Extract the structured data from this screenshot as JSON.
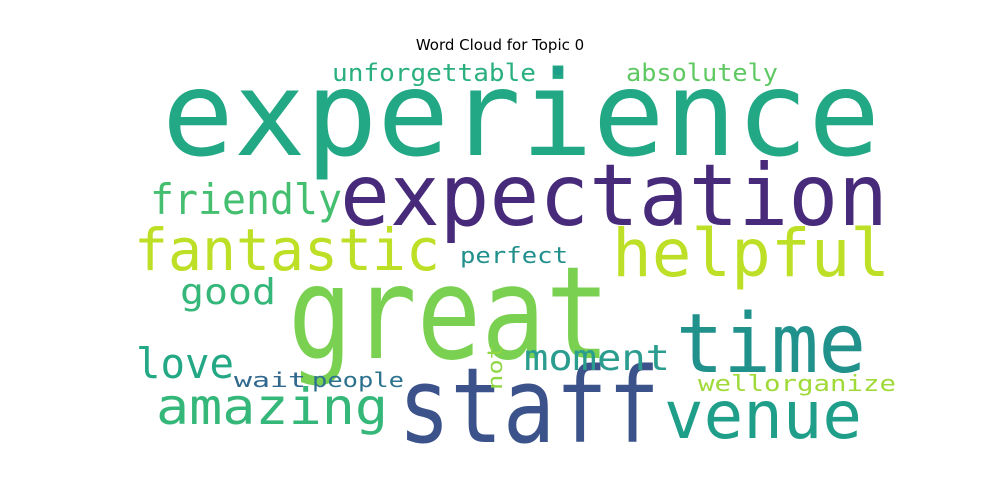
{
  "chart_data": {
    "type": "wordcloud",
    "title": "Word Cloud for Topic 0",
    "words": [
      {
        "text": "experience",
        "color": "#22a884"
      },
      {
        "text": "expectation",
        "color": "#472a7a"
      },
      {
        "text": "great",
        "color": "#7ad151"
      },
      {
        "text": "staff",
        "color": "#3b528b"
      },
      {
        "text": "time",
        "color": "#21918c"
      },
      {
        "text": "helpful",
        "color": "#bddf26"
      },
      {
        "text": "fantastic",
        "color": "#bddf26"
      },
      {
        "text": "venue",
        "color": "#1f9e89"
      },
      {
        "text": "amazing",
        "color": "#35b779"
      },
      {
        "text": "friendly",
        "color": "#44bf70"
      },
      {
        "text": "moment",
        "color": "#2a9d8f"
      },
      {
        "text": "love",
        "color": "#22a884"
      },
      {
        "text": "good",
        "color": "#35b779"
      },
      {
        "text": "unforgettable",
        "color": "#2ab07f"
      },
      {
        "text": "absolutely",
        "color": "#5ec962"
      },
      {
        "text": "perfect",
        "color": "#21908d"
      },
      {
        "text": "wellorganize",
        "color": "#a0da39"
      },
      {
        "text": "people",
        "color": "#2c728e"
      },
      {
        "text": "wait",
        "color": "#31688e"
      },
      {
        "text": "not",
        "color": "#8fd744"
      },
      {
        "text": "•",
        "color": "#1f9e89"
      }
    ]
  }
}
